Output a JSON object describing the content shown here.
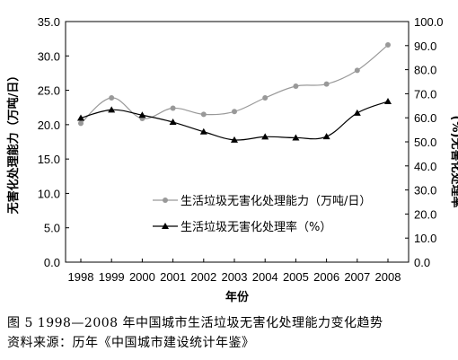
{
  "chart_data": {
    "type": "line",
    "categories": [
      "1998",
      "1999",
      "2000",
      "2001",
      "2002",
      "2003",
      "2004",
      "2005",
      "2006",
      "2007",
      "2008"
    ],
    "xlabel": "年份",
    "ylabel_left": "无害化处理能力（万吨/日）",
    "ylabel_right": "(%)无害化处理率",
    "ylim_left": [
      0,
      35
    ],
    "ylim_right": [
      0,
      100
    ],
    "yticks_left": [
      "0.0",
      "5.0",
      "10.0",
      "15.0",
      "20.0",
      "25.0",
      "30.0",
      "35.0"
    ],
    "yticks_right": [
      "0.0",
      "10.0",
      "20.0",
      "30.0",
      "40.0",
      "50.0",
      "60.0",
      "70.0",
      "80.0",
      "90.0",
      "100.0"
    ],
    "series": [
      {
        "name": "生活垃圾无害化处理能力（万吨/日）",
        "axis": "left",
        "marker": "circle",
        "color": "#999999",
        "values": [
          20.2,
          23.9,
          20.9,
          22.4,
          21.5,
          21.9,
          23.9,
          25.6,
          25.9,
          27.9,
          31.6
        ]
      },
      {
        "name": "生活垃圾无害化处理率（%）",
        "axis": "right",
        "marker": "triangle",
        "color": "#000000",
        "values": [
          59.9,
          63.3,
          61.1,
          58.2,
          54.2,
          50.8,
          52.1,
          51.7,
          52.2,
          62.0,
          66.8
        ]
      }
    ],
    "grid": false,
    "legend_position": "inside-lower-right"
  },
  "caption": {
    "title": "图 5  1998—2008 年中国城市生活垃圾无害化处理能力变化趋势",
    "source": "资料来源：历年《中国城市建设统计年鉴》"
  }
}
